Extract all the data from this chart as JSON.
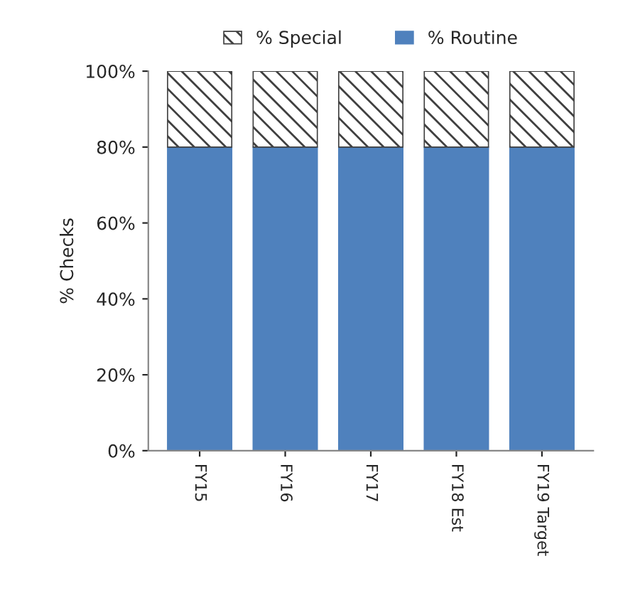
{
  "chart_data": {
    "type": "bar",
    "stacked": true,
    "ylabel": "% Checks",
    "categories": [
      "FY15",
      "FY16",
      "FY17",
      "FY18 Est",
      "FY19 Target"
    ],
    "series": [
      {
        "name": "% Routine",
        "color": "#4f81bd",
        "values": [
          80,
          80,
          80,
          80,
          80
        ]
      },
      {
        "name": "% Special",
        "color": "#404040",
        "values": [
          20,
          20,
          20,
          20,
          20
        ]
      }
    ],
    "ylim": [
      0,
      100
    ],
    "yticks": [
      {
        "value": 0,
        "label": "0%"
      },
      {
        "value": 20,
        "label": "20%"
      },
      {
        "value": 40,
        "label": "40%"
      },
      {
        "value": 60,
        "label": "60%"
      },
      {
        "value": 80,
        "label": "80%"
      },
      {
        "value": 100,
        "label": "100%"
      }
    ],
    "grid": false,
    "legend": "top"
  }
}
